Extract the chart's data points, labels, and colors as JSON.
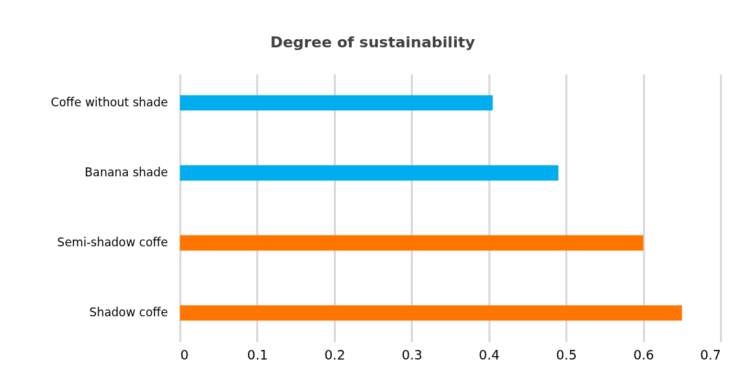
{
  "chart_data": {
    "type": "bar",
    "orientation": "horizontal",
    "title": "Degree of sustainability",
    "categories": [
      "Coffe without shade",
      "Banana shade",
      "Semi-shadow coffe",
      "Shadow coffe"
    ],
    "values": [
      0.405,
      0.49,
      0.6,
      0.65
    ],
    "colors": [
      "#00aeef",
      "#00aeef",
      "#ff7500",
      "#ff7500"
    ],
    "xlim": [
      0,
      0.7
    ],
    "xticks": [
      0,
      0.1,
      0.2,
      0.3,
      0.4,
      0.5,
      0.6,
      0.7
    ],
    "grid": "x"
  }
}
